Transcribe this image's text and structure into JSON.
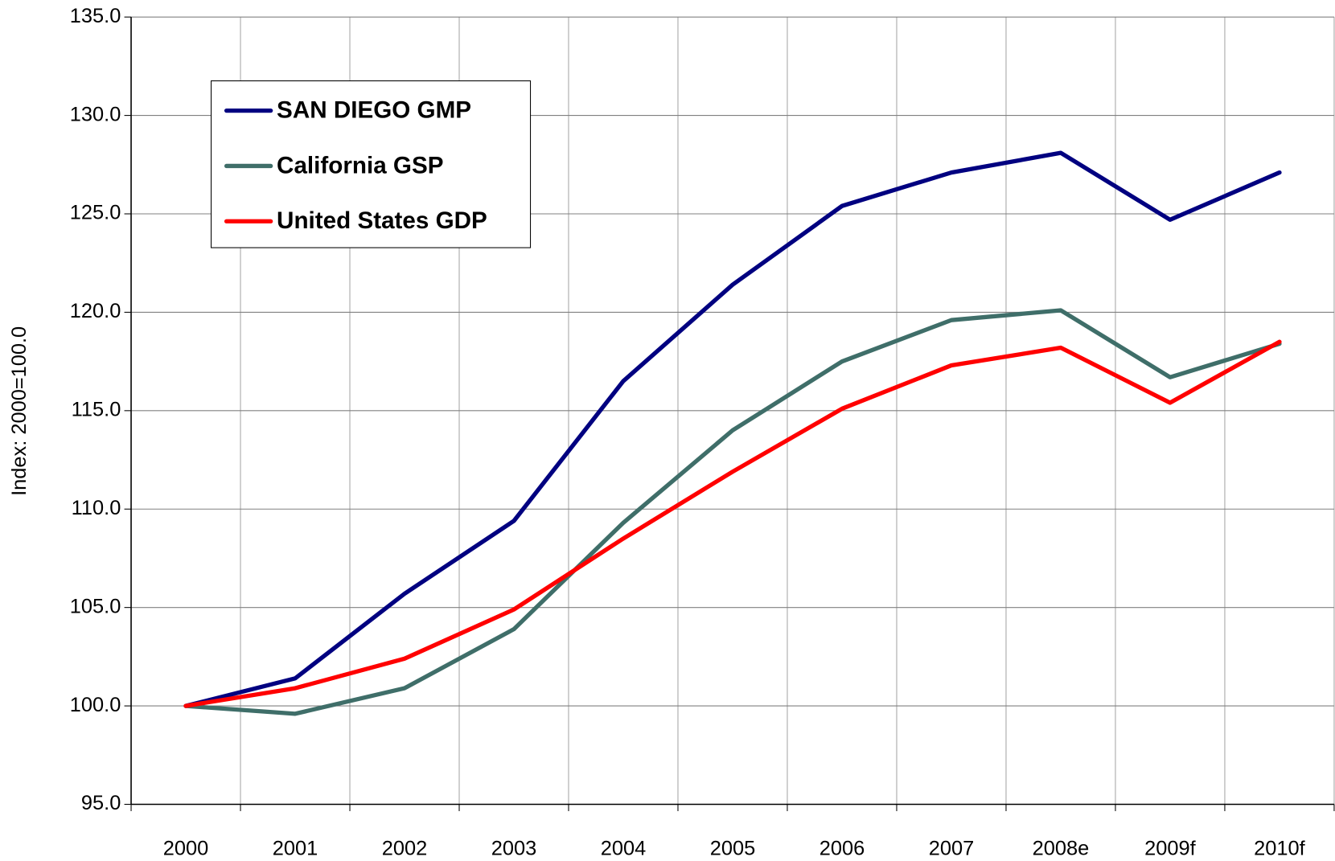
{
  "chart_data": {
    "type": "line",
    "y_label": "Index: 2000=100.0",
    "categories": [
      "2000",
      "2001",
      "2002",
      "2003",
      "2004",
      "2005",
      "2006",
      "2007",
      "2008e",
      "2009f",
      "2010f"
    ],
    "series": [
      {
        "name": "SAN DIEGO GMP",
        "color": "#000080",
        "values": [
          100.0,
          101.4,
          105.7,
          109.4,
          116.5,
          121.4,
          125.4,
          127.1,
          128.1,
          124.7,
          127.1
        ]
      },
      {
        "name": "California GSP",
        "color": "#3f6e69",
        "values": [
          100.0,
          99.6,
          100.9,
          103.9,
          109.3,
          114.0,
          117.5,
          119.6,
          120.1,
          116.7,
          118.4
        ]
      },
      {
        "name": "United States GDP",
        "color": "#ff0000",
        "values": [
          100.0,
          100.9,
          102.4,
          104.9,
          108.5,
          111.9,
          115.1,
          117.3,
          118.2,
          115.4,
          118.5
        ]
      }
    ],
    "ylim": [
      95,
      135
    ],
    "yticks": [
      {
        "value": 95,
        "label": "95.0"
      },
      {
        "value": 100,
        "label": "100.0"
      },
      {
        "value": 105,
        "label": "105.0"
      },
      {
        "value": 110,
        "label": "110.0"
      },
      {
        "value": 115,
        "label": "115.0"
      },
      {
        "value": 120,
        "label": "120.0"
      },
      {
        "value": 125,
        "label": "125.0"
      },
      {
        "value": 130,
        "label": "130.0"
      },
      {
        "value": 135,
        "label": "135.0"
      }
    ],
    "grid": true,
    "legend": "upper left"
  }
}
